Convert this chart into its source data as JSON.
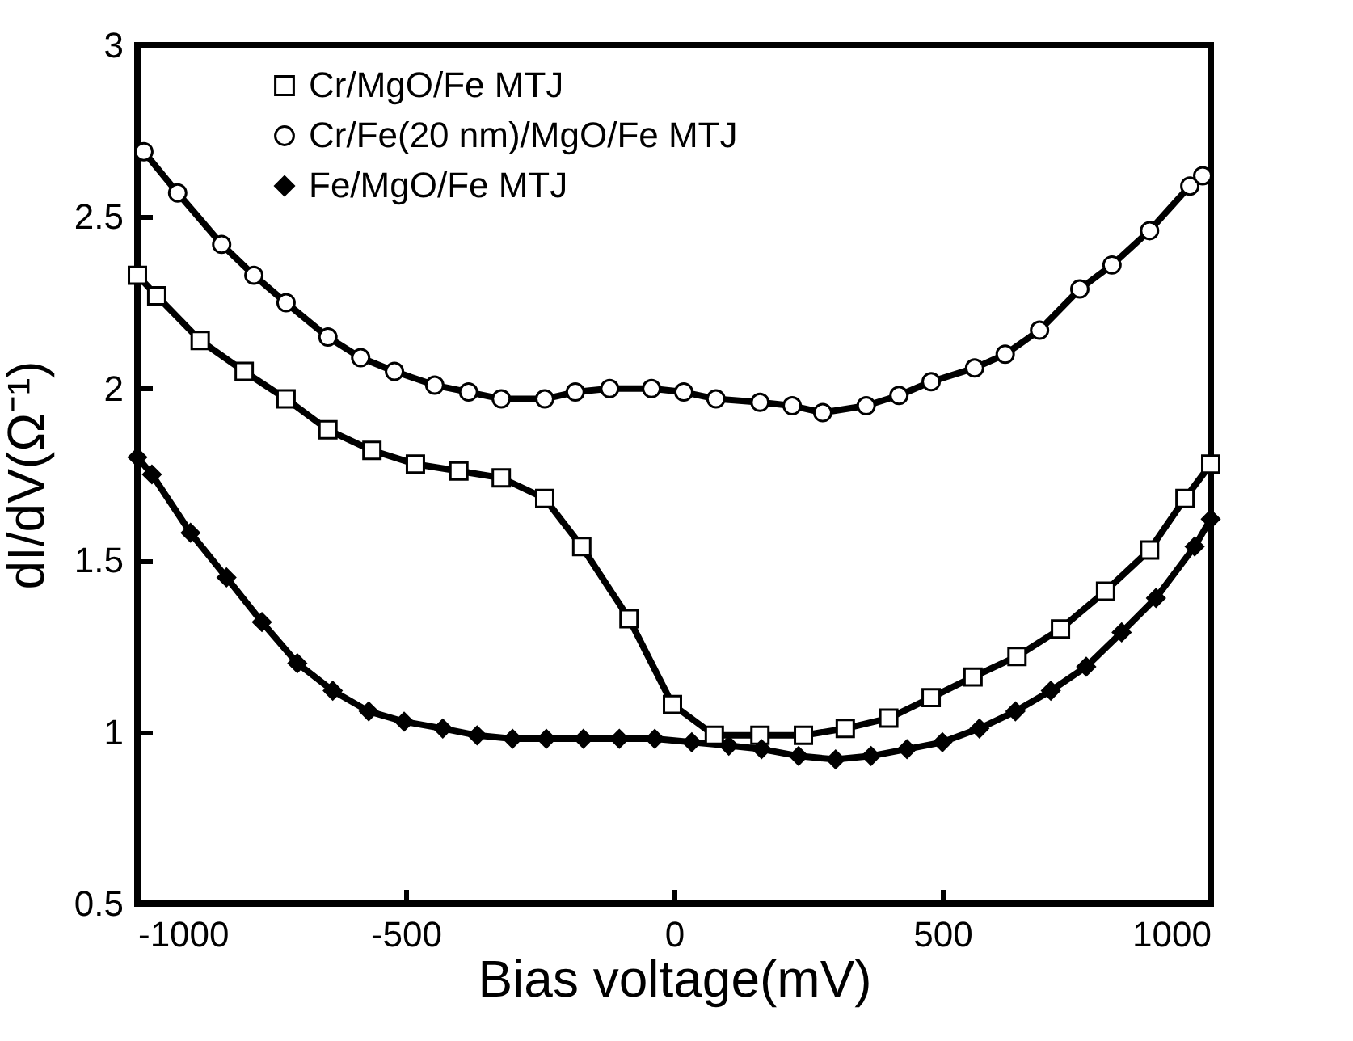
{
  "chart_data": {
    "type": "line",
    "xlabel": "Bias voltage(mV)",
    "ylabel": "dI/dV(Ω⁻¹)",
    "xlim": [
      -1000,
      1000
    ],
    "ylim": [
      0.5,
      3
    ],
    "xticks": [
      -1000,
      -500,
      0,
      500,
      1000
    ],
    "yticks": [
      0.5,
      1,
      1.5,
      2,
      2.5,
      3
    ],
    "legend": "top left",
    "grid": false,
    "line_style": "solid",
    "series": [
      {
        "name": "Cr/MgO/Fe MTJ",
        "color": "#000000",
        "marker": "square",
        "x": [
          -1000,
          -964,
          -883,
          -801,
          -723,
          -645,
          -563,
          -482,
          -401,
          -322,
          -241,
          -172,
          -84,
          -3,
          75,
          160,
          241,
          319,
          400,
          479,
          557,
          639,
          720,
          804,
          886,
          952,
          1000
        ],
        "values": [
          2.33,
          2.27,
          2.14,
          2.05,
          1.97,
          1.88,
          1.82,
          1.78,
          1.76,
          1.74,
          1.68,
          1.54,
          1.33,
          1.08,
          0.99,
          0.99,
          0.99,
          1.01,
          1.04,
          1.1,
          1.16,
          1.22,
          1.3,
          1.41,
          1.53,
          1.68,
          1.78
        ]
      },
      {
        "name": "Cr/Fe(20 nm)/MgO/Fe MTJ",
        "color": "#000000",
        "marker": "circle",
        "x": [
          -988,
          -925,
          -843,
          -783,
          -723,
          -645,
          -584,
          -521,
          -446,
          -383,
          -322,
          -241,
          -184,
          -120,
          -42,
          18,
          78,
          160,
          220,
          277,
          358,
          419,
          479,
          560,
          617,
          681,
          756,
          816,
          886,
          961,
          985
        ],
        "values": [
          2.69,
          2.57,
          2.42,
          2.33,
          2.25,
          2.15,
          2.09,
          2.05,
          2.01,
          1.99,
          1.97,
          1.97,
          1.99,
          2.0,
          2.0,
          1.99,
          1.97,
          1.96,
          1.95,
          1.93,
          1.95,
          1.98,
          2.02,
          2.06,
          2.1,
          2.17,
          2.29,
          2.36,
          2.46,
          2.59,
          2.62
        ]
      },
      {
        "name": "Fe/MgO/Fe MTJ",
        "color": "#000000",
        "marker": "diamond",
        "x": [
          -1000,
          -973,
          -901,
          -834,
          -768,
          -702,
          -636,
          -569,
          -503,
          -431,
          -367,
          -301,
          -238,
          -169,
          -102,
          -36,
          33,
          102,
          163,
          232,
          301,
          367,
          434,
          500,
          569,
          636,
          702,
          768,
          834,
          898,
          970,
          1000
        ],
        "values": [
          1.8,
          1.75,
          1.58,
          1.45,
          1.32,
          1.2,
          1.12,
          1.06,
          1.03,
          1.01,
          0.99,
          0.98,
          0.98,
          0.98,
          0.98,
          0.98,
          0.97,
          0.96,
          0.95,
          0.93,
          0.92,
          0.93,
          0.95,
          0.97,
          1.01,
          1.06,
          1.12,
          1.19,
          1.29,
          1.39,
          1.54,
          1.62
        ]
      }
    ]
  }
}
